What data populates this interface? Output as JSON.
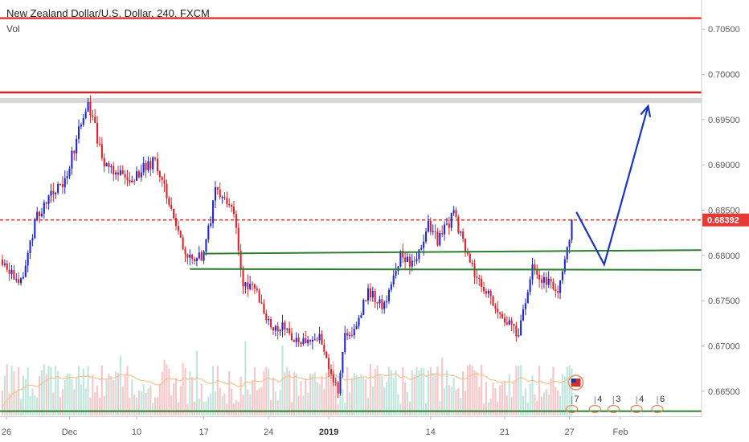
{
  "header": {
    "title": "New Zealand Dollar/U.S. Dollar, 240, FXCM",
    "volume_label": "Vol"
  },
  "chart_data": {
    "type": "candlestick",
    "title": "New Zealand Dollar/U.S. Dollar, 240, FXCM",
    "y_axis": {
      "ylim": [
        0.6625,
        0.7075
      ],
      "ticks": [
        "0.70500",
        "0.70000",
        "0.69500",
        "0.69000",
        "0.68500",
        "0.68000",
        "0.67500",
        "0.67000",
        "0.66500"
      ]
    },
    "x_axis": {
      "ticks": [
        {
          "label": "26",
          "bar": 0,
          "bold": false
        },
        {
          "label": "Dec",
          "bar": 29,
          "bold": false
        },
        {
          "label": "10",
          "bar": 58,
          "bold": false
        },
        {
          "label": "17",
          "bar": 87,
          "bold": false
        },
        {
          "label": "24",
          "bar": 115,
          "bold": false
        },
        {
          "label": "2019",
          "bar": 141,
          "bold": true
        },
        {
          "label": "14",
          "bar": 185,
          "bold": false
        },
        {
          "label": "21",
          "bar": 217,
          "bold": false
        },
        {
          "label": "27",
          "bar": 245,
          "bold": false
        },
        {
          "label": "Feb",
          "bar": 267,
          "bold": false
        }
      ]
    },
    "current_price": {
      "label": "0.68392",
      "value": 0.68392
    },
    "colors": {
      "up": "#1f28d6",
      "down": "#e0232a",
      "volume_up": "#a9dcd0",
      "volume_down": "#f4b3b5",
      "volume_ma": "#f3c08a",
      "resistance": "#c62828",
      "support": "#2e7d32",
      "arrow": "#1a35c4",
      "badge": "#e53935"
    },
    "key_points": [
      {
        "bar": 0,
        "price": 0.6795
      },
      {
        "bar": 8,
        "price": 0.677
      },
      {
        "bar": 15,
        "price": 0.6845
      },
      {
        "bar": 27,
        "price": 0.6885
      },
      {
        "bar": 37,
        "price": 0.697
      },
      {
        "bar": 44,
        "price": 0.69
      },
      {
        "bar": 55,
        "price": 0.6885
      },
      {
        "bar": 66,
        "price": 0.6905
      },
      {
        "bar": 72,
        "price": 0.686
      },
      {
        "bar": 80,
        "price": 0.6795
      },
      {
        "bar": 87,
        "price": 0.68
      },
      {
        "bar": 92,
        "price": 0.687
      },
      {
        "bar": 99,
        "price": 0.686
      },
      {
        "bar": 104,
        "price": 0.677
      },
      {
        "bar": 109,
        "price": 0.6765
      },
      {
        "bar": 114,
        "price": 0.6725
      },
      {
        "bar": 121,
        "price": 0.672
      },
      {
        "bar": 129,
        "price": 0.6705
      },
      {
        "bar": 137,
        "price": 0.671
      },
      {
        "bar": 141,
        "price": 0.668
      },
      {
        "bar": 145,
        "price": 0.6645
      },
      {
        "bar": 148,
        "price": 0.671
      },
      {
        "bar": 152,
        "price": 0.6715
      },
      {
        "bar": 158,
        "price": 0.676
      },
      {
        "bar": 165,
        "price": 0.6745
      },
      {
        "bar": 172,
        "price": 0.68
      },
      {
        "bar": 178,
        "price": 0.679
      },
      {
        "bar": 184,
        "price": 0.6835
      },
      {
        "bar": 188,
        "price": 0.6815
      },
      {
        "bar": 195,
        "price": 0.6845
      },
      {
        "bar": 202,
        "price": 0.679
      },
      {
        "bar": 209,
        "price": 0.676
      },
      {
        "bar": 216,
        "price": 0.673
      },
      {
        "bar": 223,
        "price": 0.6715
      },
      {
        "bar": 229,
        "price": 0.6785
      },
      {
        "bar": 235,
        "price": 0.677
      },
      {
        "bar": 240,
        "price": 0.6765
      },
      {
        "bar": 243,
        "price": 0.679
      },
      {
        "bar": 246,
        "price": 0.6839
      }
    ],
    "horizontal_lines": [
      {
        "name": "resistance-line-upper",
        "price": 0.7062,
        "color": "#e53935",
        "width": 2.5,
        "style": "solid"
      },
      {
        "name": "resistance-line-lower",
        "price": 0.698,
        "color": "#c62828",
        "width": 2.5,
        "style": "solid"
      },
      {
        "name": "resistance-zone",
        "price": 0.6971,
        "color": "#d8d8d8",
        "width": 6,
        "style": "solid"
      },
      {
        "name": "current-price-line",
        "price": 0.68392,
        "color": "#e53935",
        "width": 1.6,
        "style": "dashed"
      },
      {
        "name": "bottom-support-line",
        "price": 0.6628,
        "color": "#2e7d32",
        "width": 2,
        "style": "solid"
      }
    ],
    "trend_lines": [
      {
        "name": "support-trendline-upper",
        "from": {
          "bar": 87,
          "price": 0.6802
        },
        "to": {
          "bar": 306,
          "price": 0.6806
        },
        "color": "#2e7d32"
      },
      {
        "name": "support-trendline-lower",
        "from": {
          "bar": 81,
          "price": 0.6785
        },
        "to": {
          "bar": 306,
          "price": 0.6784
        },
        "color": "#2e7d32"
      }
    ],
    "projection_path": [
      {
        "bar": 248,
        "price": 0.6848
      },
      {
        "bar": 260,
        "price": 0.679
      },
      {
        "bar": 279,
        "price": 0.6965
      }
    ],
    "event_badges": [
      {
        "label": "7",
        "bar": 246
      },
      {
        "label": "4",
        "bar": 256
      },
      {
        "label": "3",
        "bar": 264
      },
      {
        "label": "4",
        "bar": 274
      },
      {
        "label": "6",
        "bar": 283
      }
    ],
    "volume_ma_level": 0.35
  }
}
